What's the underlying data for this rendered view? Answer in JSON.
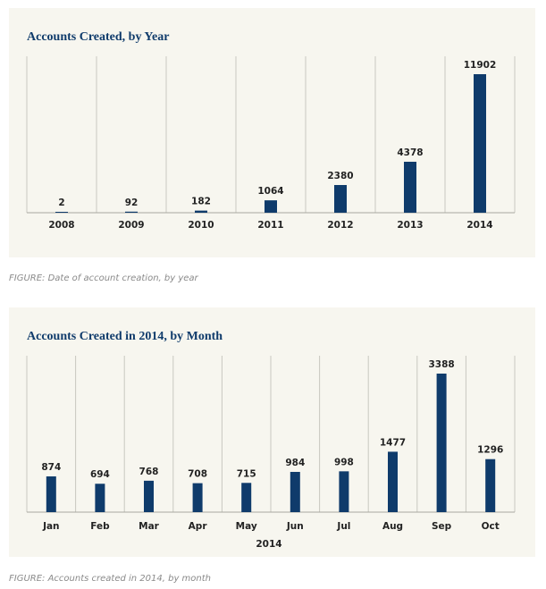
{
  "chart_data": [
    {
      "type": "bar",
      "title": "Accounts Created, by Year",
      "xlabel": "",
      "ylabel": "",
      "categories": [
        "2008",
        "2009",
        "2010",
        "2011",
        "2012",
        "2013",
        "2014"
      ],
      "values": [
        2,
        92,
        182,
        1064,
        2380,
        4378,
        11902
      ],
      "ylim": [
        0,
        11902
      ],
      "grid": "vertical separators",
      "legend": "none",
      "bar_color": "#0f3b6b",
      "caption": "FIGURE: Date of account creation, by year"
    },
    {
      "type": "bar",
      "title": "Accounts Created in 2014, by Month",
      "xlabel": "2014",
      "ylabel": "",
      "categories": [
        "Jan",
        "Feb",
        "Mar",
        "Apr",
        "May",
        "Jun",
        "Jul",
        "Aug",
        "Sep",
        "Oct"
      ],
      "values": [
        874,
        694,
        768,
        708,
        715,
        984,
        998,
        1477,
        3388,
        1296
      ],
      "ylim": [
        0,
        3388
      ],
      "grid": "vertical separators",
      "legend": "none",
      "bar_color": "#0f3b6b",
      "caption": "FIGURE: Accounts created in 2014, by month"
    }
  ]
}
